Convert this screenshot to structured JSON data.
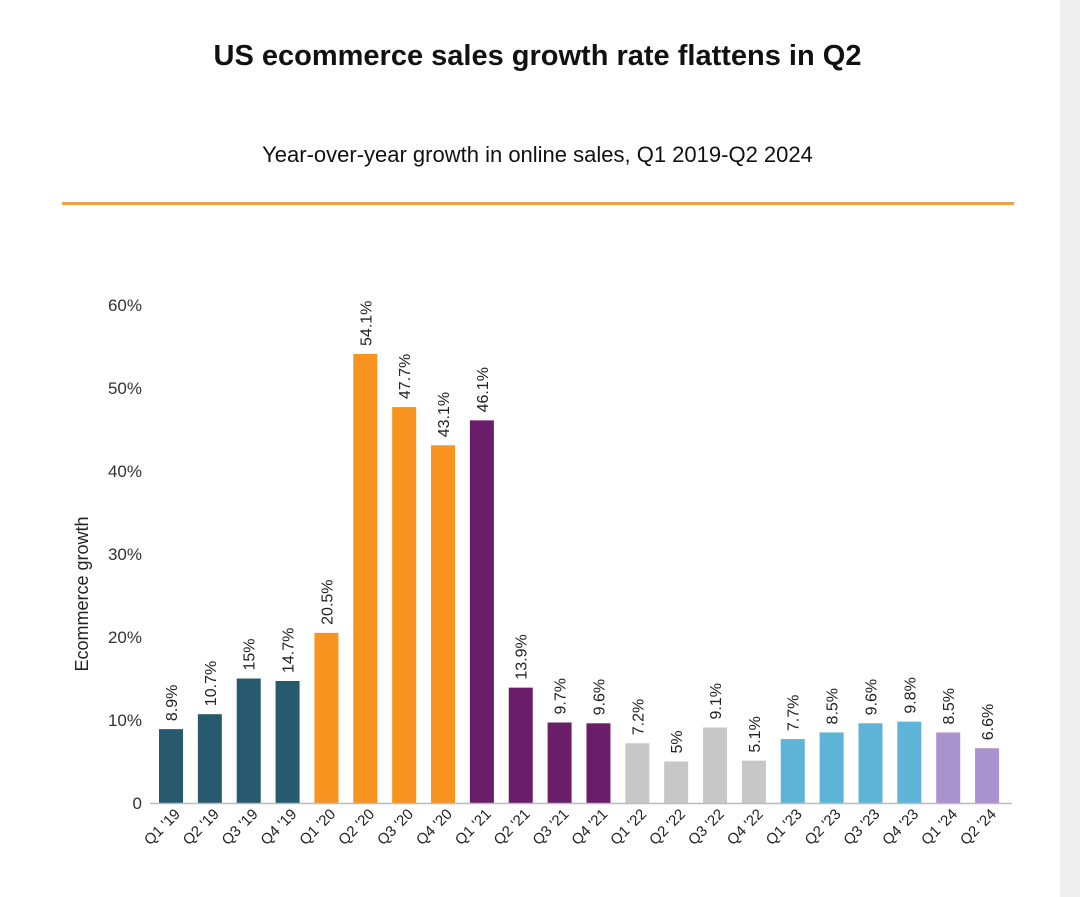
{
  "chart_data": {
    "type": "bar",
    "title": "US ecommerce sales growth rate flattens in Q2",
    "subtitle": "Year-over-year growth in online sales, Q1 2019-Q2 2024",
    "ylabel": "Ecommerce growth",
    "xlabel": "",
    "ylim": [
      0,
      60
    ],
    "yticks": [
      {
        "value": 0,
        "label": "0"
      },
      {
        "value": 10,
        "label": "10%"
      },
      {
        "value": 20,
        "label": "20%"
      },
      {
        "value": 30,
        "label": "30%"
      },
      {
        "value": 40,
        "label": "40%"
      },
      {
        "value": 50,
        "label": "50%"
      },
      {
        "value": 60,
        "label": "60%"
      }
    ],
    "grid": false,
    "categories": [
      "Q1 '19",
      "Q2 '19",
      "Q3 '19",
      "Q4 '19",
      "Q1 '20",
      "Q2 '20",
      "Q3 '20",
      "Q4 '20",
      "Q1 '21",
      "Q2 '21",
      "Q3 '21",
      "Q4 '21",
      "Q1 '22",
      "Q2 '22",
      "Q3 '22",
      "Q4 '22",
      "Q1 '23",
      "Q2 '23",
      "Q3 '23",
      "Q4 '23",
      "Q1 '24",
      "Q2 '24"
    ],
    "values": [
      8.9,
      10.7,
      15,
      14.7,
      20.5,
      54.1,
      47.7,
      43.1,
      46.1,
      13.9,
      9.7,
      9.6,
      7.2,
      5,
      9.1,
      5.1,
      7.7,
      8.5,
      9.6,
      9.8,
      8.5,
      6.6
    ],
    "value_labels": [
      "8.9%",
      "10.7%",
      "15%",
      "14.7%",
      "20.5%",
      "54.1%",
      "47.7%",
      "43.1%",
      "46.1%",
      "13.9%",
      "9.7%",
      "9.6%",
      "7.2%",
      "5%",
      "9.1%",
      "5.1%",
      "7.7%",
      "8.5%",
      "9.6%",
      "9.8%",
      "8.5%",
      "6.6%"
    ],
    "colors": [
      "#275a6e",
      "#275a6e",
      "#275a6e",
      "#275a6e",
      "#f7931e",
      "#f7931e",
      "#f7931e",
      "#f7931e",
      "#6a1e69",
      "#6a1e69",
      "#6a1e69",
      "#6a1e69",
      "#c7c7c7",
      "#c7c7c7",
      "#c7c7c7",
      "#c7c7c7",
      "#5eb4d6",
      "#5eb4d6",
      "#5eb4d6",
      "#5eb4d6",
      "#a992cd",
      "#a992cd"
    ]
  },
  "colors": {
    "accent_rule": "#f2a140",
    "axis": "#bbbbbb"
  }
}
